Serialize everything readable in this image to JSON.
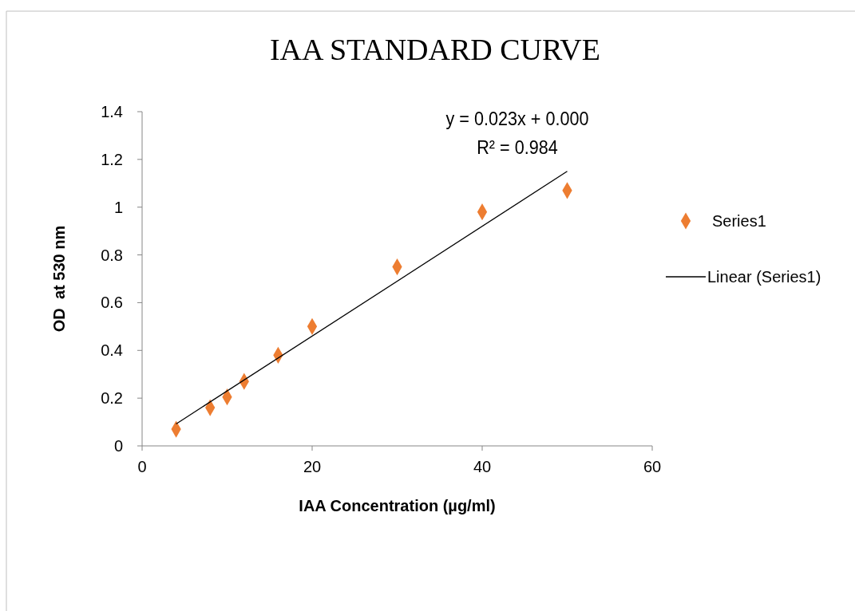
{
  "chart_data": {
    "type": "scatter",
    "title": "IAA STANDARD CURVE",
    "xlabel": "IAA Concentration (µg/ml)",
    "ylabel": "OD  at 530 nm",
    "series": [
      {
        "name": "Series1",
        "color": "#ed7d31",
        "marker": "diamond",
        "x": [
          4,
          8,
          10,
          12,
          16,
          20,
          30,
          40,
          50
        ],
        "values": [
          0.07,
          0.16,
          0.205,
          0.27,
          0.38,
          0.5,
          0.75,
          0.98,
          1.07
        ]
      },
      {
        "name": "Linear (Series1)",
        "type": "line",
        "color": "#000000",
        "marker": "none",
        "x": [
          4,
          50
        ],
        "values": [
          0.092,
          1.15
        ]
      }
    ],
    "annotations": [
      "y = 0.023x + 0.000",
      "R² = 0.984"
    ],
    "xlim": [
      0,
      60
    ],
    "xticks": [
      0,
      20,
      40,
      60
    ],
    "ylim": [
      0,
      1.4
    ],
    "yticks": [
      0,
      0.2,
      0.4,
      0.6,
      0.8,
      1,
      1.2,
      1.4
    ],
    "grid": false,
    "legend": "right"
  }
}
